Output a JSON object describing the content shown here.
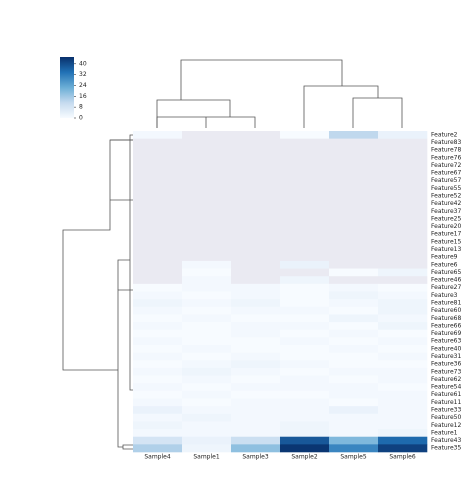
{
  "chart_data": {
    "type": "heatmap",
    "x": [
      "Sample4",
      "Sample1",
      "Sample3",
      "Sample2",
      "Sample5",
      "Sample6"
    ],
    "categories": [
      "Feature2",
      "Feature83",
      "Feature78",
      "Feature76",
      "Feature72",
      "Feature67",
      "Feature57",
      "Feature55",
      "Feature52",
      "Feature42",
      "Feature37",
      "Feature25",
      "Feature20",
      "Feature17",
      "Feature15",
      "Feature13",
      "Feature9",
      "Feature6",
      "Feature65",
      "Feature46",
      "Feature27",
      "Feature3",
      "Feature81",
      "Feature60",
      "Feature68",
      "Feature66",
      "Feature69",
      "Feature63",
      "Feature40",
      "Feature31",
      "Feature36",
      "Feature73",
      "Feature62",
      "Feature54",
      "Feature61",
      "Feature11",
      "Feature33",
      "Feature50",
      "Feature12",
      "Feature1",
      "Feature43",
      "Feature35"
    ],
    "values": [
      [
        1,
        null,
        null,
        0,
        12,
        3
      ],
      [
        null,
        null,
        null,
        null,
        null,
        null
      ],
      [
        null,
        null,
        null,
        null,
        null,
        null
      ],
      [
        null,
        null,
        null,
        null,
        null,
        null
      ],
      [
        null,
        null,
        null,
        null,
        null,
        null
      ],
      [
        null,
        null,
        null,
        null,
        null,
        null
      ],
      [
        null,
        null,
        null,
        null,
        null,
        null
      ],
      [
        null,
        null,
        null,
        null,
        null,
        null
      ],
      [
        null,
        null,
        null,
        null,
        null,
        null
      ],
      [
        null,
        null,
        null,
        null,
        null,
        null
      ],
      [
        null,
        null,
        null,
        null,
        null,
        null
      ],
      [
        null,
        null,
        null,
        null,
        null,
        null
      ],
      [
        null,
        null,
        null,
        null,
        null,
        null
      ],
      [
        null,
        null,
        null,
        null,
        null,
        null
      ],
      [
        null,
        null,
        null,
        null,
        null,
        null
      ],
      [
        null,
        null,
        null,
        null,
        null,
        null
      ],
      [
        null,
        null,
        null,
        null,
        null,
        null
      ],
      [
        null,
        1,
        null,
        3,
        null,
        null
      ],
      [
        null,
        0,
        null,
        null,
        0,
        2
      ],
      [
        null,
        1,
        null,
        2,
        null,
        null
      ],
      [
        0,
        1,
        1,
        0,
        1,
        0
      ],
      [
        1,
        0,
        1,
        0,
        2,
        1
      ],
      [
        2,
        1,
        2,
        0,
        1,
        2
      ],
      [
        1,
        0,
        1,
        1,
        0,
        2
      ],
      [
        0,
        1,
        0,
        0,
        2,
        1
      ],
      [
        1,
        0,
        1,
        1,
        0,
        2
      ],
      [
        0,
        0,
        1,
        0,
        1,
        0
      ],
      [
        1,
        0,
        0,
        1,
        0,
        1
      ],
      [
        0,
        1,
        0,
        0,
        1,
        0
      ],
      [
        1,
        0,
        1,
        0,
        0,
        1
      ],
      [
        0,
        1,
        2,
        1,
        0,
        0
      ],
      [
        1,
        2,
        1,
        0,
        1,
        1
      ],
      [
        0,
        1,
        0,
        1,
        0,
        1
      ],
      [
        1,
        0,
        1,
        1,
        1,
        0
      ],
      [
        0,
        1,
        0,
        0,
        1,
        1
      ],
      [
        1,
        0,
        1,
        1,
        0,
        1
      ],
      [
        3,
        1,
        1,
        1,
        3,
        1
      ],
      [
        1,
        2,
        1,
        1,
        1,
        1
      ],
      [
        2,
        1,
        1,
        2,
        1,
        1
      ],
      [
        1,
        1,
        1,
        2,
        1,
        2
      ],
      [
        8,
        3,
        10,
        38,
        20,
        35
      ],
      [
        14,
        2,
        18,
        44,
        30,
        42
      ]
    ],
    "colormap": [
      "#f7fbff",
      "#c6dbef",
      "#6baed6",
      "#2171b5",
      "#08306b"
    ],
    "missing_color": "#eaeaf2",
    "ylim": [
      0,
      45
    ],
    "yticks": [
      0,
      8,
      16,
      24,
      32,
      40
    ]
  }
}
